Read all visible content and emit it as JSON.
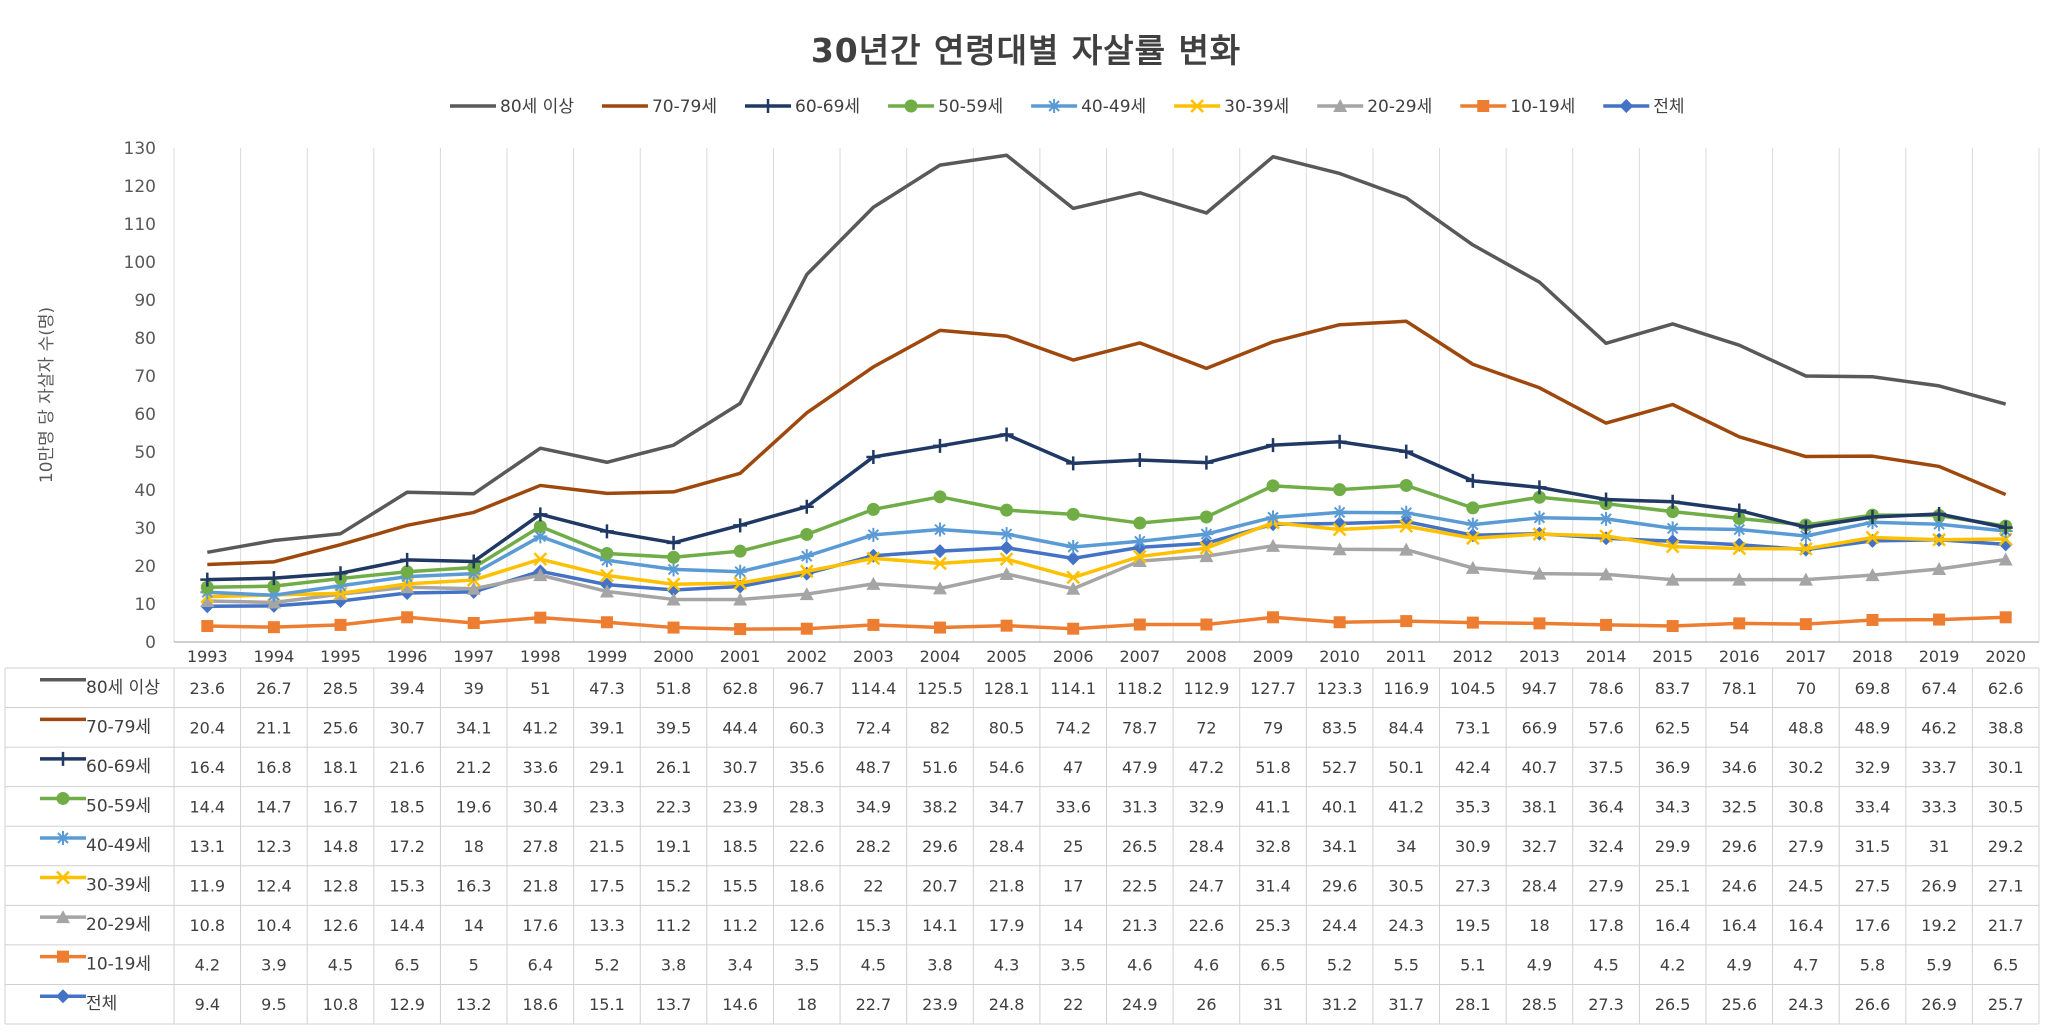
{
  "chart_data": {
    "type": "line",
    "title": "30년간 연령대별 자살률 변화",
    "ylabel": "10만명 당 자살자 수(명)",
    "ylim": [
      0,
      130
    ],
    "yticks": [
      0,
      10,
      20,
      30,
      40,
      50,
      60,
      70,
      80,
      90,
      100,
      110,
      120,
      130
    ],
    "grid": "vertical",
    "legend": "top",
    "data_table": true,
    "x": [
      "1993",
      "1994",
      "1995",
      "1996",
      "1997",
      "1998",
      "1999",
      "2000",
      "2001",
      "2002",
      "2003",
      "2004",
      "2005",
      "2006",
      "2007",
      "2008",
      "2009",
      "2010",
      "2011",
      "2012",
      "2013",
      "2014",
      "2015",
      "2016",
      "2017",
      "2018",
      "2019",
      "2020"
    ],
    "series": [
      {
        "name": "80세 이상",
        "color": "#595959",
        "marker": "none",
        "values": [
          23.6,
          26.7,
          28.5,
          39.4,
          39,
          51,
          47.3,
          51.8,
          62.8,
          96.7,
          114.4,
          125.5,
          128.1,
          114.1,
          118.2,
          112.9,
          127.7,
          123.3,
          116.9,
          104.5,
          94.7,
          78.6,
          83.7,
          78.1,
          70,
          69.8,
          67.4,
          62.6
        ]
      },
      {
        "name": "70-79세",
        "color": "#9E480E",
        "marker": "none",
        "values": [
          20.4,
          21.1,
          25.6,
          30.7,
          34.1,
          41.2,
          39.1,
          39.5,
          44.4,
          60.3,
          72.4,
          82,
          80.5,
          74.2,
          78.7,
          72,
          79,
          83.5,
          84.4,
          73.1,
          66.9,
          57.6,
          62.5,
          54,
          48.8,
          48.9,
          46.2,
          38.8
        ]
      },
      {
        "name": "60-69세",
        "color": "#203864",
        "marker": "plus",
        "values": [
          16.4,
          16.8,
          18.1,
          21.6,
          21.2,
          33.6,
          29.1,
          26.1,
          30.7,
          35.6,
          48.7,
          51.6,
          54.6,
          47,
          47.9,
          47.2,
          51.8,
          52.7,
          50.1,
          42.4,
          40.7,
          37.5,
          36.9,
          34.6,
          30.2,
          32.9,
          33.7,
          30.1
        ]
      },
      {
        "name": "50-59세",
        "color": "#70AD47",
        "marker": "circle",
        "values": [
          14.4,
          14.7,
          16.7,
          18.5,
          19.6,
          30.4,
          23.3,
          22.3,
          23.9,
          28.3,
          34.9,
          38.2,
          34.7,
          33.6,
          31.3,
          32.9,
          41.1,
          40.1,
          41.2,
          35.3,
          38.1,
          36.4,
          34.3,
          32.5,
          30.8,
          33.4,
          33.3,
          30.5
        ]
      },
      {
        "name": "40-49세",
        "color": "#5B9BD5",
        "marker": "star",
        "values": [
          13.1,
          12.3,
          14.8,
          17.2,
          18,
          27.8,
          21.5,
          19.1,
          18.5,
          22.6,
          28.2,
          29.6,
          28.4,
          25,
          26.5,
          28.4,
          32.8,
          34.1,
          34,
          30.9,
          32.7,
          32.4,
          29.9,
          29.6,
          27.9,
          31.5,
          31,
          29.2
        ]
      },
      {
        "name": "30-39세",
        "color": "#FFC000",
        "marker": "x",
        "values": [
          11.9,
          12.4,
          12.8,
          15.3,
          16.3,
          21.8,
          17.5,
          15.2,
          15.5,
          18.6,
          22,
          20.7,
          21.8,
          17,
          22.5,
          24.7,
          31.4,
          29.6,
          30.5,
          27.3,
          28.4,
          27.9,
          25.1,
          24.6,
          24.5,
          27.5,
          26.9,
          27.1
        ]
      },
      {
        "name": "20-29세",
        "color": "#A5A5A5",
        "marker": "triangle",
        "values": [
          10.8,
          10.4,
          12.6,
          14.4,
          14,
          17.6,
          13.3,
          11.2,
          11.2,
          12.6,
          15.3,
          14.1,
          17.9,
          14,
          21.3,
          22.6,
          25.3,
          24.4,
          24.3,
          19.5,
          18,
          17.8,
          16.4,
          16.4,
          16.4,
          17.6,
          19.2,
          21.7
        ]
      },
      {
        "name": "10-19세",
        "color": "#ED7D31",
        "marker": "square",
        "values": [
          4.2,
          3.9,
          4.5,
          6.5,
          5,
          6.4,
          5.2,
          3.8,
          3.4,
          3.5,
          4.5,
          3.8,
          4.3,
          3.5,
          4.6,
          4.6,
          6.5,
          5.2,
          5.5,
          5.1,
          4.9,
          4.5,
          4.2,
          4.9,
          4.7,
          5.8,
          5.9,
          6.5
        ]
      },
      {
        "name": "전체",
        "color": "#4472C4",
        "marker": "diamond",
        "values": [
          9.4,
          9.5,
          10.8,
          12.9,
          13.2,
          18.6,
          15.1,
          13.7,
          14.6,
          18,
          22.7,
          23.9,
          24.8,
          22,
          24.9,
          26,
          31,
          31.2,
          31.7,
          28.1,
          28.5,
          27.3,
          26.5,
          25.6,
          24.3,
          26.6,
          26.9,
          25.7
        ]
      }
    ]
  }
}
